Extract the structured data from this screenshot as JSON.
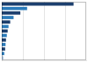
{
  "chart_data": {
    "type": "bar",
    "orientation": "horizontal",
    "categories": [
      null,
      null,
      null,
      null,
      null,
      null,
      null,
      null,
      null,
      null,
      null,
      null,
      null
    ],
    "values": [
      85,
      30,
      22,
      14,
      10,
      8,
      7,
      6,
      5,
      4.5,
      4,
      3,
      2
    ],
    "colors": [
      "#1c3f6e",
      "#2b7bba",
      "#1c3f6e",
      "#2b7bba",
      "#1c3f6e",
      "#2b7bba",
      "#1c3f6e",
      "#2b7bba",
      "#1c3f6e",
      "#2b7bba",
      "#1c3f6e",
      "#2b7bba",
      "#b0c8e0"
    ],
    "xlim": [
      0,
      100
    ],
    "xticks": [
      25,
      50,
      75
    ],
    "grid": true,
    "tick_labels": false
  }
}
